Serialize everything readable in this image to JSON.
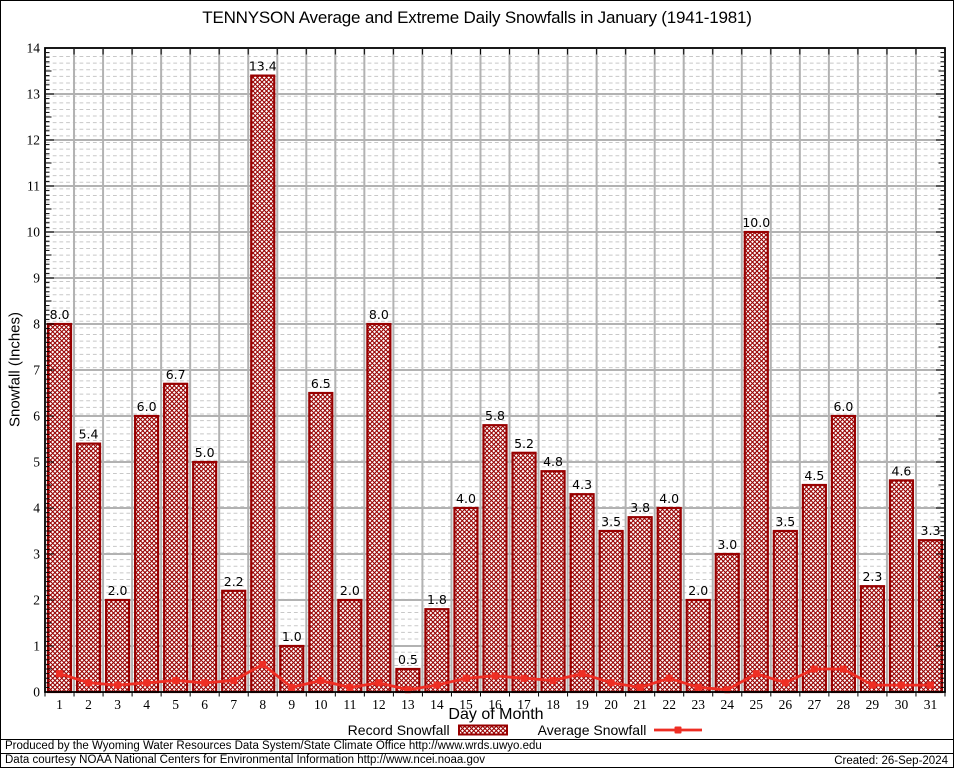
{
  "chart_data": {
    "type": "bar",
    "title": "TENNYSON Average and Extreme Daily Snowfalls in January (1941-1981)",
    "xlabel": "Day of Month",
    "ylabel": "Snowfall (Inches)",
    "ylim": [
      0,
      14
    ],
    "yticks": [
      0,
      1,
      2,
      3,
      4,
      5,
      6,
      7,
      8,
      9,
      10,
      11,
      12,
      13,
      14
    ],
    "categories": [
      1,
      2,
      3,
      4,
      5,
      6,
      7,
      8,
      9,
      10,
      11,
      12,
      13,
      14,
      15,
      16,
      17,
      18,
      19,
      20,
      21,
      22,
      23,
      24,
      25,
      26,
      27,
      28,
      29,
      30,
      31
    ],
    "series": [
      {
        "name": "Record Snowfall",
        "type": "bar",
        "values": [
          8.0,
          5.4,
          2.0,
          6.0,
          6.7,
          5.0,
          2.2,
          13.4,
          1.0,
          6.5,
          2.0,
          8.0,
          0.5,
          1.8,
          4.0,
          5.8,
          5.2,
          4.8,
          4.3,
          3.5,
          3.8,
          4.0,
          2.0,
          3.0,
          10.0,
          3.5,
          4.5,
          6.0,
          2.3,
          4.6,
          3.3
        ],
        "value_labels_shown": true
      },
      {
        "name": "Average Snowfall",
        "type": "line",
        "values": [
          0.4,
          0.2,
          0.15,
          0.2,
          0.25,
          0.2,
          0.25,
          0.6,
          0.1,
          0.25,
          0.1,
          0.2,
          0.05,
          0.15,
          0.3,
          0.35,
          0.3,
          0.25,
          0.4,
          0.2,
          0.1,
          0.3,
          0.1,
          0.05,
          0.4,
          0.2,
          0.5,
          0.5,
          0.15,
          0.15,
          0.15
        ],
        "value_labels_shown": false
      }
    ],
    "colors": {
      "bar_outline": "#980000",
      "bar_hatch": "#980000",
      "line": "#ee2e24",
      "grid_major": "#b2b2b2",
      "grid_minor": "#c8c8c8"
    },
    "grid": "major-solid + minor-dotted",
    "legend_position": "bottom"
  },
  "footer": {
    "line1": "Produced by the Wyoming Water Resources Data System/State Climate Office http://www.wrds.uwyo.edu",
    "line2": "Data courtesy NOAA National Centers for Environmental Information http://www.ncei.noaa.gov",
    "created": "Created: 26-Sep-2024"
  }
}
